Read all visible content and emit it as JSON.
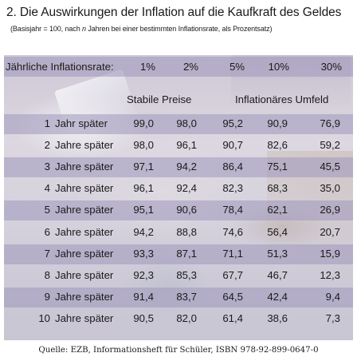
{
  "title": "2. Die Auswirkungen der Inflation auf die Kaufkraft des Geldes",
  "subtitle_before": "(Basisjahr = 100, nach ",
  "subtitle_italic": "n",
  "subtitle_after": " Jahren bei einer bestimmten Inflationsrate, als Prozentsatz)",
  "rate_label": "Jährliche Inflationsrate:",
  "rates": [
    "1%",
    "2%",
    "5%",
    "10%",
    "30%"
  ],
  "group_labels": [
    "Stabile Preise",
    "Inflationäres Umfeld"
  ],
  "rows": [
    {
      "num": "1",
      "label": "Jahr später",
      "values": [
        "99,0",
        "98,0",
        "95,2",
        "90,9",
        "76,9"
      ]
    },
    {
      "num": "2",
      "label": "Jahre später",
      "values": [
        "98,0",
        "96,1",
        "90,7",
        "82,6",
        "59,2"
      ]
    },
    {
      "num": "3",
      "label": "Jahre später",
      "values": [
        "97,1",
        "94,2",
        "86,4",
        "75,1",
        "45,5"
      ]
    },
    {
      "num": "4",
      "label": "Jahre später",
      "values": [
        "96,1",
        "92,4",
        "82,3",
        "68,3",
        "35,0"
      ]
    },
    {
      "num": "5",
      "label": "Jahre später",
      "values": [
        "95,1",
        "90,6",
        "78,4",
        "62,1",
        "26,9"
      ]
    },
    {
      "num": "6",
      "label": "Jahre später",
      "values": [
        "94,2",
        "88,8",
        "74,6",
        "56,4",
        "20,7"
      ]
    },
    {
      "num": "7",
      "label": "Jahre später",
      "values": [
        "93,3",
        "87,1",
        "71,1",
        "51,3",
        "15,9"
      ]
    },
    {
      "num": "8",
      "label": "Jahre später",
      "values": [
        "92,3",
        "85,3",
        "67,7",
        "46,7",
        "12,3"
      ]
    },
    {
      "num": "9",
      "label": "Jahre später",
      "values": [
        "91,4",
        "83,7",
        "64,5",
        "42,4",
        "9,4"
      ]
    },
    {
      "num": "10",
      "label": "Jahre später",
      "values": [
        "90,5",
        "82,0",
        "61,4",
        "38,6",
        "7,3"
      ]
    }
  ],
  "source": "Quelle: EZB, Informationsheft für Schüler, ISBN 978-92-899-0647-0"
}
